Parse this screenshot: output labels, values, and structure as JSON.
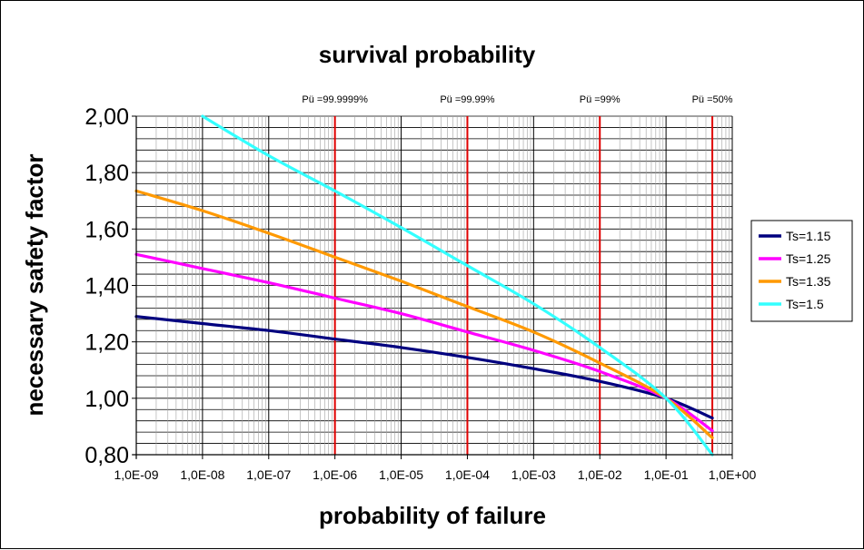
{
  "chart_data": {
    "type": "line",
    "title": "survival probability",
    "xlabel": "probability of failure",
    "ylabel": "necessary safety factor",
    "x_scale": "log",
    "xlim": [
      1e-09,
      1
    ],
    "ylim": [
      0.8,
      2.0
    ],
    "x_ticks": [
      1e-09,
      1e-08,
      1e-07,
      1e-06,
      1e-05,
      0.0001,
      0.001,
      0.01,
      0.1,
      1
    ],
    "x_tick_labels": [
      "1,0E-09",
      "1,0E-08",
      "1,0E-07",
      "1,0E-06",
      "1,0E-05",
      "1,0E-04",
      "1,0E-03",
      "1,0E-02",
      "1,0E-01",
      "1,0E+00"
    ],
    "y_ticks": [
      0.8,
      1.0,
      1.2,
      1.4,
      1.6,
      1.8,
      2.0
    ],
    "y_tick_labels": [
      "0,80",
      "1,00",
      "1,20",
      "1,40",
      "1,60",
      "1,80",
      "2,00"
    ],
    "grid": true,
    "legend": "right",
    "annotations": [
      {
        "label": "Pü =99.9999%",
        "x": 1e-06,
        "color": "#e00000"
      },
      {
        "label": "Pü =99.99%",
        "x": 0.0001,
        "color": "#e00000"
      },
      {
        "label": "Pü =99%",
        "x": 0.01,
        "color": "#e00000"
      },
      {
        "label": "Pü =50%",
        "x": 0.5,
        "color": "#e00000"
      }
    ],
    "series": [
      {
        "name": "Ts=1.15",
        "color": "#00007f",
        "x": [
          1e-09,
          1e-08,
          1e-07,
          1e-06,
          1e-05,
          0.0001,
          0.001,
          0.01,
          0.1,
          0.5
        ],
        "y": [
          1.29,
          1.265,
          1.24,
          1.21,
          1.18,
          1.145,
          1.105,
          1.06,
          1.0,
          0.93
        ]
      },
      {
        "name": "Ts=1.25",
        "color": "#ff00ff",
        "x": [
          1e-09,
          1e-08,
          1e-07,
          1e-06,
          1e-05,
          0.0001,
          0.001,
          0.01,
          0.1,
          0.5
        ],
        "y": [
          1.51,
          1.46,
          1.41,
          1.355,
          1.3,
          1.235,
          1.17,
          1.095,
          1.0,
          0.885
        ]
      },
      {
        "name": "Ts=1.35",
        "color": "#ff9900",
        "x": [
          1e-09,
          1e-08,
          1e-07,
          1e-06,
          1e-05,
          0.0001,
          0.001,
          0.01,
          0.1,
          0.5
        ],
        "y": [
          1.735,
          1.665,
          1.585,
          1.5,
          1.415,
          1.325,
          1.235,
          1.125,
          1.0,
          0.86
        ]
      },
      {
        "name": "Ts=1.5",
        "color": "#33ffff",
        "x": [
          1e-08,
          1e-07,
          1e-06,
          1e-05,
          0.0001,
          0.001,
          0.01,
          0.1,
          0.5
        ],
        "y": [
          2.0,
          1.86,
          1.735,
          1.605,
          1.47,
          1.335,
          1.18,
          1.0,
          0.8
        ]
      }
    ]
  }
}
